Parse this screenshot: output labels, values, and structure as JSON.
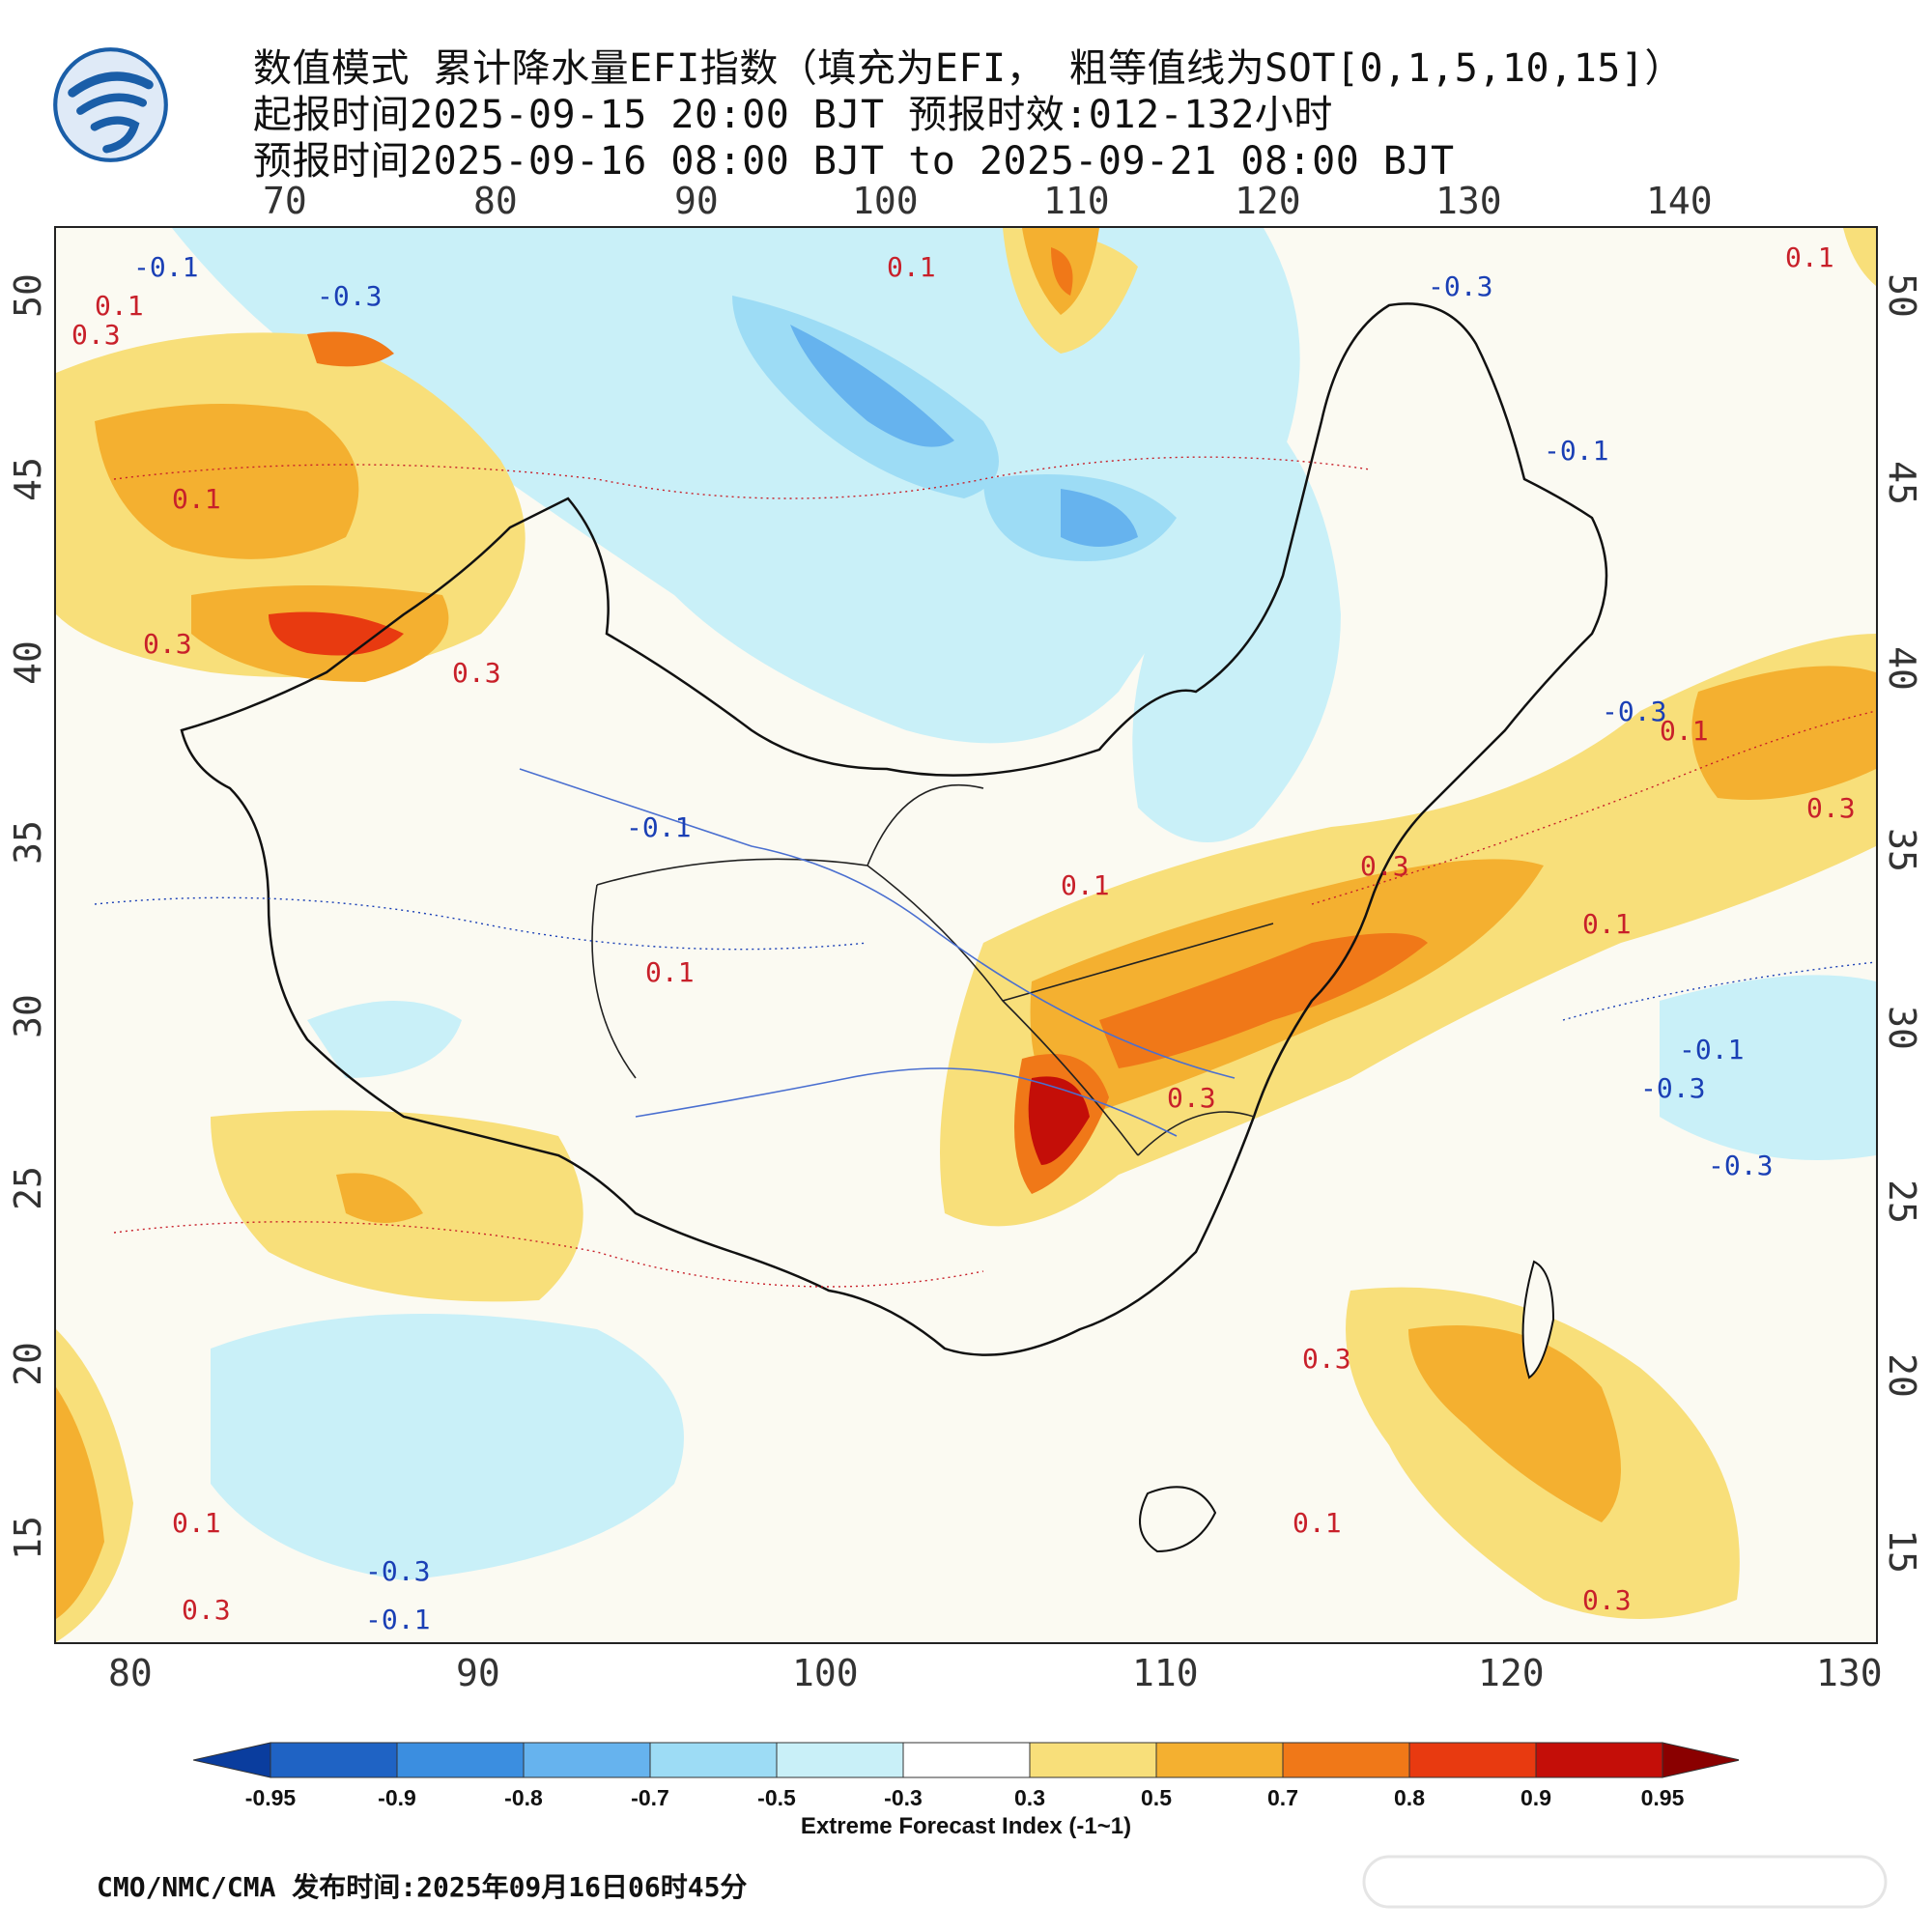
{
  "header": {
    "line1": "数值模式 累计降水量EFI指数（填充为EFI， 粗等值线为SOT[0,1,5,10,15]）",
    "line2": "起报时间2025-09-15 20:00 BJT 预报时效:012-132小时",
    "line3": "预报时间2025-09-16 08:00 BJT to 2025-09-21 08:00 BJT"
  },
  "logo": {
    "icon": "cma-logo-icon",
    "color": "#1a5ea8"
  },
  "map": {
    "top_lon_ticks": [
      "70",
      "80",
      "90",
      "100",
      "110",
      "120",
      "130",
      "140"
    ],
    "bottom_lon_ticks": [
      "80",
      "90",
      "100",
      "110",
      "120",
      "130"
    ],
    "left_lat_ticks": [
      "50",
      "45",
      "40",
      "35",
      "30",
      "25",
      "20",
      "15"
    ],
    "right_lat_ticks": [
      "50",
      "45",
      "40",
      "35",
      "30",
      "25",
      "20",
      "15"
    ],
    "contour_labels": [
      {
        "text": "-0.1",
        "color": "#1a3fb5"
      },
      {
        "text": "-0.3",
        "color": "#1a3fb5"
      },
      {
        "text": "0.1",
        "color": "#c8202a"
      },
      {
        "text": "0.3",
        "color": "#c8202a"
      },
      {
        "text": "0.1",
        "color": "#c8202a"
      },
      {
        "text": "0.3",
        "color": "#c8202a"
      },
      {
        "text": "0.3",
        "color": "#c8202a"
      },
      {
        "text": "-0.3",
        "color": "#1a3fb5"
      },
      {
        "text": "-0.1",
        "color": "#1a3fb5"
      },
      {
        "text": "0.1",
        "color": "#c8202a"
      },
      {
        "text": "0.1",
        "color": "#c8202a"
      },
      {
        "text": "-0.3",
        "color": "#1a3fb5"
      },
      {
        "text": "0.1",
        "color": "#c8202a"
      },
      {
        "text": "0.3",
        "color": "#c8202a"
      },
      {
        "text": "-0.1",
        "color": "#1a3fb5"
      },
      {
        "text": "0.1",
        "color": "#c8202a"
      },
      {
        "text": "0.3",
        "color": "#c8202a"
      },
      {
        "text": "0.3",
        "color": "#c8202a"
      },
      {
        "text": "0.1",
        "color": "#c8202a"
      },
      {
        "text": "-0.1",
        "color": "#1a3fb5"
      },
      {
        "text": "-0.3",
        "color": "#1a3fb5"
      },
      {
        "text": "-0.3",
        "color": "#1a3fb5"
      },
      {
        "text": "0.1",
        "color": "#c8202a"
      },
      {
        "text": "0.3",
        "color": "#c8202a"
      },
      {
        "text": "0.1",
        "color": "#c8202a"
      },
      {
        "text": "0.3",
        "color": "#c8202a"
      },
      {
        "text": "-0.3",
        "color": "#1a3fb5"
      },
      {
        "text": "-0.1",
        "color": "#1a3fb5"
      },
      {
        "text": "0.1",
        "color": "#c8202a"
      },
      {
        "text": "0.3",
        "color": "#c8202a"
      }
    ],
    "colors": {
      "frame": "#222222",
      "border": "#111111",
      "river": "#4a6fd0"
    }
  },
  "colorbar": {
    "labels": [
      "-0.95",
      "-0.9",
      "-0.8",
      "-0.7",
      "-0.5",
      "-0.3",
      "0.3",
      "0.5",
      "0.7",
      "0.8",
      "0.9",
      "0.95"
    ],
    "colors": [
      "#0a3d9e",
      "#1f63c4",
      "#3b8ee0",
      "#66b3ee",
      "#9ddcf5",
      "#c9f0f8",
      "#ffffff",
      "#f8df7a",
      "#f4b030",
      "#f07818",
      "#e83a10",
      "#c40e08",
      "#8a0000"
    ],
    "title": "Extreme Forecast Index (-1~1)"
  },
  "footer": {
    "text": "CMO/NMC/CMA 发布时间:2025年09月16日06时45分"
  }
}
